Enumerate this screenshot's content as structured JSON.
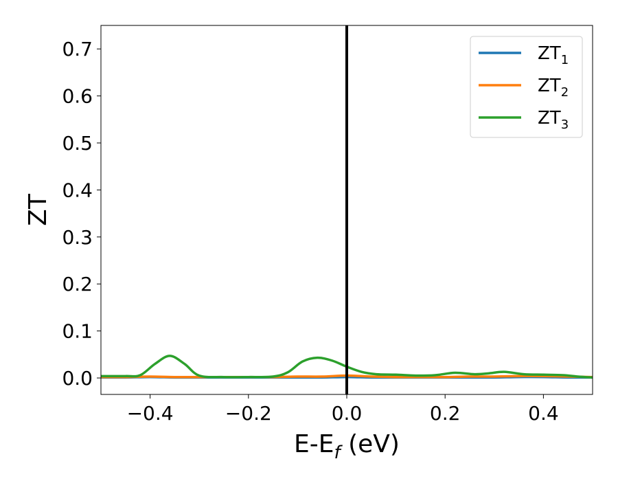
{
  "chart_data": {
    "type": "line",
    "xlabel": "E-E_f (eV)",
    "ylabel": "ZT",
    "xlim": [
      -0.5,
      0.5
    ],
    "ylim": [
      -0.035,
      0.75
    ],
    "x_ticks": [
      -0.4,
      -0.2,
      0.0,
      0.2,
      0.4
    ],
    "x_tick_labels": [
      "−0.4",
      "−0.2",
      "0.0",
      "0.2",
      "0.4"
    ],
    "y_ticks": [
      0.0,
      0.1,
      0.2,
      0.3,
      0.4,
      0.5,
      0.6,
      0.7
    ],
    "y_tick_labels": [
      "0.0",
      "0.1",
      "0.2",
      "0.3",
      "0.4",
      "0.5",
      "0.6",
      "0.7"
    ],
    "grid": false,
    "legend_position": "top-right",
    "vertical_line": {
      "x": 0.0,
      "color": "#000000"
    },
    "series": [
      {
        "name": "ZT1",
        "legend_base": "ZT",
        "legend_sub": "1",
        "color": "#1f77b4",
        "x": [
          -0.5,
          -0.45,
          -0.4,
          -0.35,
          -0.3,
          -0.25,
          -0.2,
          -0.15,
          -0.1,
          -0.05,
          0.0,
          0.05,
          0.1,
          0.15,
          0.2,
          0.25,
          0.3,
          0.35,
          0.4,
          0.45,
          0.5
        ],
        "y": [
          0.001,
          0.001,
          0.002,
          0.001,
          0.001,
          0.001,
          0.001,
          0.001,
          0.001,
          0.001,
          0.002,
          0.001,
          0.001,
          0.001,
          0.001,
          0.001,
          0.001,
          0.002,
          0.002,
          0.001,
          0.001
        ]
      },
      {
        "name": "ZT2",
        "legend_base": "ZT",
        "legend_sub": "2",
        "color": "#ff7f0e",
        "x": [
          -0.5,
          -0.45,
          -0.4,
          -0.35,
          -0.3,
          -0.25,
          -0.2,
          -0.15,
          -0.1,
          -0.05,
          0.0,
          0.05,
          0.1,
          0.15,
          0.2,
          0.25,
          0.3,
          0.35,
          0.4,
          0.45,
          0.5
        ],
        "y": [
          0.002,
          0.002,
          0.003,
          0.002,
          0.002,
          0.002,
          0.002,
          0.002,
          0.003,
          0.003,
          0.005,
          0.003,
          0.002,
          0.002,
          0.002,
          0.003,
          0.003,
          0.004,
          0.004,
          0.003,
          0.002
        ]
      },
      {
        "name": "ZT3",
        "legend_base": "ZT",
        "legend_sub": "3",
        "color": "#2ca02c",
        "x": [
          -0.5,
          -0.45,
          -0.42,
          -0.39,
          -0.36,
          -0.33,
          -0.3,
          -0.25,
          -0.2,
          -0.15,
          -0.12,
          -0.09,
          -0.06,
          -0.03,
          0.0,
          0.03,
          0.06,
          0.1,
          0.14,
          0.18,
          0.22,
          0.26,
          0.29,
          0.32,
          0.36,
          0.4,
          0.44,
          0.47,
          0.5
        ],
        "y": [
          0.004,
          0.004,
          0.006,
          0.03,
          0.047,
          0.03,
          0.005,
          0.002,
          0.002,
          0.003,
          0.012,
          0.035,
          0.043,
          0.037,
          0.024,
          0.013,
          0.008,
          0.007,
          0.005,
          0.006,
          0.011,
          0.008,
          0.01,
          0.013,
          0.008,
          0.007,
          0.006,
          0.003,
          0.001
        ]
      }
    ]
  }
}
